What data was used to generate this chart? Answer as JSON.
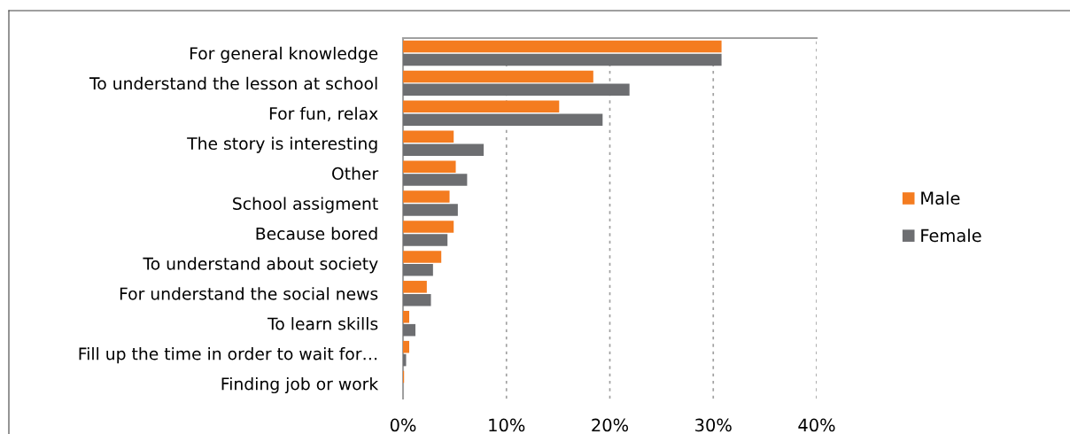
{
  "chart_data": {
    "type": "bar",
    "orientation": "horizontal",
    "categories": [
      "For general knowledge",
      "To understand the lesson at school",
      "For fun, relax",
      "The story is interesting",
      "Other",
      "School assigment",
      "Because bored",
      "To understand about society",
      "For understand the social news",
      "To learn skills",
      "Fill up the time in order to wait for…",
      "Finding job or work"
    ],
    "series": [
      {
        "name": "Male",
        "color": "#f47c20",
        "values": [
          30.8,
          18.4,
          15.1,
          4.9,
          5.1,
          4.5,
          4.9,
          3.7,
          2.3,
          0.6,
          0.6,
          0.1
        ]
      },
      {
        "name": "Female",
        "color": "#6d6e71",
        "values": [
          30.8,
          21.9,
          19.3,
          7.8,
          6.2,
          5.3,
          4.3,
          2.9,
          2.7,
          1.2,
          0.3,
          0
        ]
      }
    ],
    "xlim": [
      0,
      40
    ],
    "xticks": [
      {
        "value": 0,
        "label": "0%"
      },
      {
        "value": 10,
        "label": "10%"
      },
      {
        "value": 20,
        "label": "20%"
      },
      {
        "value": 30,
        "label": "30%"
      },
      {
        "value": 40,
        "label": "40%"
      }
    ],
    "grid": "x",
    "legend": "right"
  }
}
